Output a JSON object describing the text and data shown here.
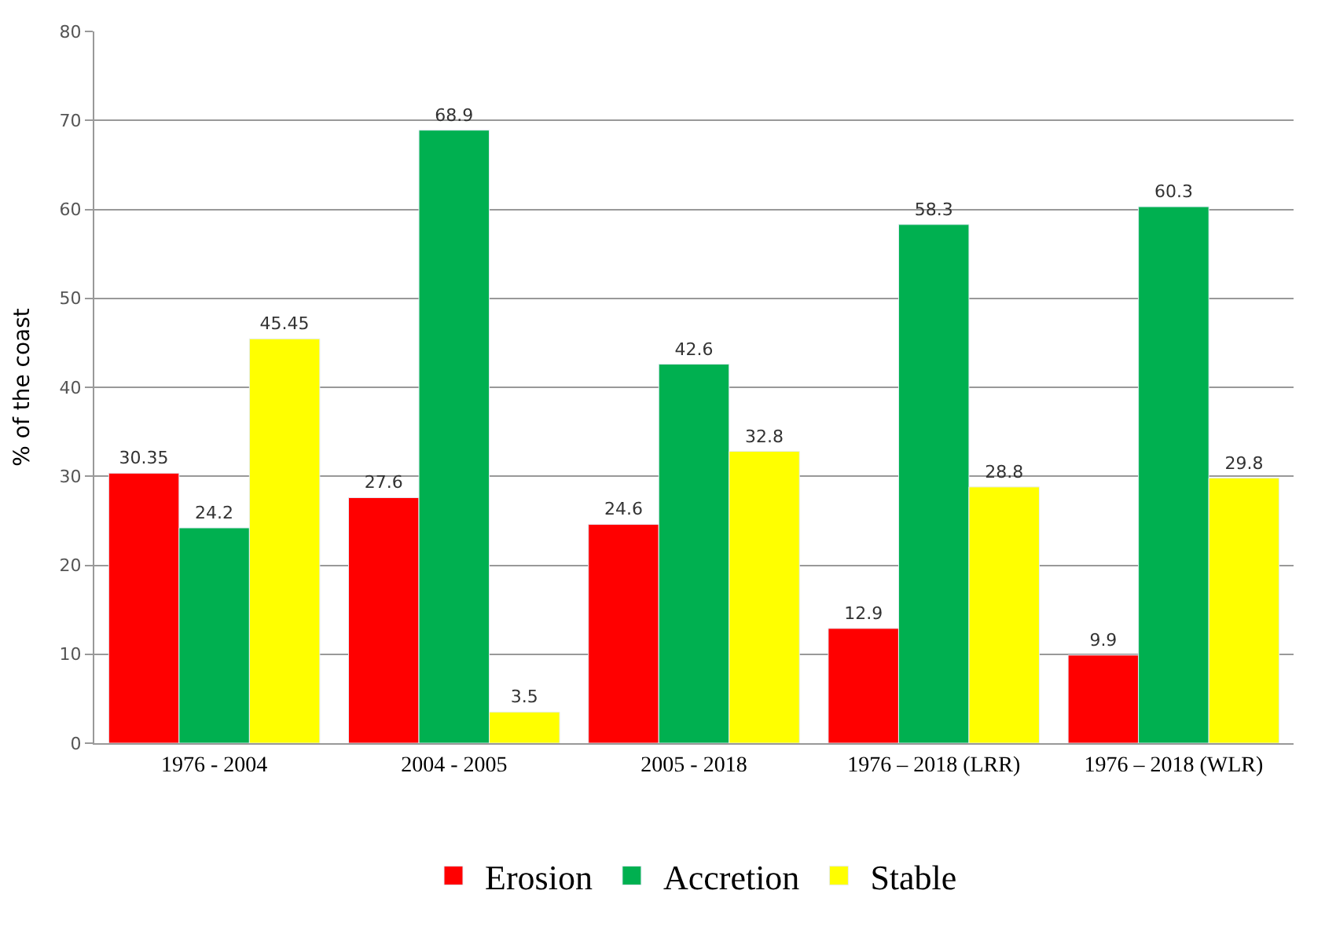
{
  "chart_data": {
    "type": "bar",
    "ylabel": "% of the coast",
    "categories": [
      "1976 - 2004",
      "2004 - 2005",
      "2005 - 2018",
      "1976 – 2018 (LRR)",
      "1976 – 2018 (WLR)"
    ],
    "series": [
      {
        "name": "Erosion",
        "color": "#ff0000",
        "values": [
          30.35,
          27.6,
          24.6,
          12.9,
          9.9
        ]
      },
      {
        "name": "Accretion",
        "color": "#00b050",
        "values": [
          24.2,
          68.9,
          42.6,
          58.3,
          60.3
        ]
      },
      {
        "name": "Stable",
        "color": "#ffff00",
        "values": [
          45.45,
          3.5,
          32.8,
          28.8,
          29.8
        ]
      }
    ],
    "ylim": [
      0,
      80
    ],
    "yticks": [
      0,
      10,
      20,
      30,
      40,
      50,
      60,
      70,
      80
    ],
    "grid": "y",
    "legend": "bottom",
    "data_labels": true
  }
}
